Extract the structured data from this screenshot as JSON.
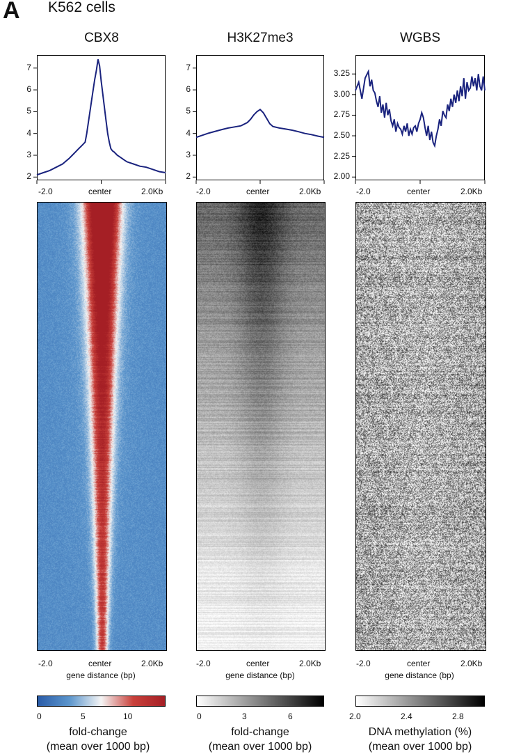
{
  "figure": {
    "panel_letter": "A",
    "title": "K562 cells",
    "colors": {
      "cbx8_line": "#1a237e",
      "h3k_line": "#1a237e",
      "wgbs_line": "#1a237e"
    }
  },
  "chart_data": [
    {
      "type": "line",
      "name": "CBX8 profile",
      "title": "CBX8",
      "x_tick_labels": [
        "-2.0",
        "center",
        "2.0Kb"
      ],
      "y_ticks": [
        2,
        3,
        4,
        5,
        6,
        7
      ],
      "ylim": [
        1.85,
        7.6
      ],
      "x": [
        -2000,
        -1800,
        -1600,
        -1400,
        -1200,
        -1000,
        -900,
        -800,
        -700,
        -600,
        -500,
        -450,
        -400,
        -350,
        -300,
        -250,
        -200,
        -150,
        -100,
        -50,
        0,
        50,
        100,
        150,
        200,
        250,
        300,
        350,
        400,
        500,
        600,
        700,
        800,
        1000,
        1200,
        1400,
        1600,
        1800,
        2000
      ],
      "y": [
        2.1,
        2.2,
        2.3,
        2.45,
        2.6,
        2.85,
        3.0,
        3.15,
        3.3,
        3.45,
        3.6,
        4.0,
        4.5,
        5.0,
        5.5,
        6.0,
        6.5,
        6.9,
        7.4,
        7.1,
        6.4,
        5.8,
        5.2,
        4.6,
        4.0,
        3.6,
        3.3,
        3.2,
        3.15,
        3.0,
        2.9,
        2.8,
        2.7,
        2.6,
        2.5,
        2.45,
        2.35,
        2.25,
        2.2
      ]
    },
    {
      "type": "line",
      "name": "H3K27me3 profile",
      "title": "H3K27me3",
      "x_tick_labels": [
        "-2.0",
        "center",
        "2.0Kb"
      ],
      "y_ticks": [
        2,
        3,
        4,
        5,
        6,
        7
      ],
      "ylim": [
        1.85,
        7.6
      ],
      "x": [
        -2000,
        -1800,
        -1600,
        -1400,
        -1200,
        -1000,
        -800,
        -600,
        -400,
        -300,
        -200,
        -100,
        0,
        100,
        200,
        300,
        400,
        600,
        800,
        1000,
        1200,
        1400,
        1600,
        1800,
        2000
      ],
      "y": [
        3.82,
        3.92,
        4.02,
        4.1,
        4.18,
        4.25,
        4.3,
        4.35,
        4.5,
        4.65,
        4.85,
        5.0,
        5.1,
        4.95,
        4.7,
        4.45,
        4.32,
        4.25,
        4.2,
        4.15,
        4.08,
        4.0,
        3.95,
        3.88,
        3.82
      ]
    },
    {
      "type": "line",
      "name": "WGBS profile",
      "title": "WGBS",
      "x_tick_labels": [
        "-2.0",
        "center",
        "2.0Kb"
      ],
      "y_ticks": [
        2.0,
        2.25,
        2.5,
        2.75,
        3.0,
        3.25
      ],
      "y_tick_labels": [
        "2.00",
        "2.25",
        "2.50",
        "2.75",
        "3.00",
        "3.25"
      ],
      "ylim": [
        1.96,
        3.48
      ],
      "x": [
        -2000,
        -1900,
        -1800,
        -1700,
        -1600,
        -1550,
        -1500,
        -1450,
        -1400,
        -1350,
        -1300,
        -1250,
        -1200,
        -1150,
        -1100,
        -1050,
        -1000,
        -950,
        -900,
        -850,
        -800,
        -750,
        -700,
        -650,
        -600,
        -550,
        -500,
        -450,
        -400,
        -350,
        -300,
        -250,
        -200,
        -150,
        -100,
        -50,
        0,
        50,
        100,
        150,
        200,
        250,
        300,
        350,
        400,
        450,
        500,
        550,
        600,
        650,
        700,
        750,
        800,
        850,
        900,
        950,
        1000,
        1050,
        1100,
        1150,
        1200,
        1250,
        1300,
        1350,
        1400,
        1450,
        1500,
        1550,
        1600,
        1650,
        1700,
        1750,
        1800,
        1850,
        1900,
        1950,
        2000
      ],
      "y": [
        3.05,
        3.15,
        2.95,
        3.2,
        3.28,
        3.1,
        3.18,
        3.05,
        3.02,
        2.92,
        2.85,
        2.98,
        2.78,
        2.88,
        2.72,
        2.9,
        2.75,
        2.82,
        2.68,
        2.62,
        2.7,
        2.55,
        2.65,
        2.6,
        2.58,
        2.52,
        2.62,
        2.55,
        2.65,
        2.5,
        2.58,
        2.52,
        2.6,
        2.62,
        2.55,
        2.65,
        2.7,
        2.78,
        2.72,
        2.6,
        2.5,
        2.62,
        2.45,
        2.55,
        2.42,
        2.38,
        2.5,
        2.58,
        2.7,
        2.62,
        2.8,
        2.75,
        2.72,
        2.88,
        2.8,
        2.95,
        2.85,
        3.0,
        2.9,
        3.05,
        2.92,
        3.1,
        2.98,
        3.2,
        2.95,
        3.15,
        3.05,
        3.08,
        3.22,
        3.1,
        3.2,
        3.05,
        3.25,
        3.1,
        3.05,
        3.22,
        3.05
      ]
    },
    {
      "type": "heatmap",
      "name": "CBX8 heatmap",
      "x_tick_labels": [
        "-2.0",
        "center",
        "2.0Kb"
      ],
      "xlabel": "gene distance (bp)",
      "colormap": [
        "#2a5ca8",
        "#5b95cc",
        "#f5f5f5",
        "#c9413b",
        "#a51f25"
      ],
      "colorbar_ticks": [
        0,
        5,
        10
      ],
      "colorbar_range": [
        0,
        14
      ],
      "colorbar_label_line1": "fold-change",
      "colorbar_label_line2": "(mean over 1000 bp)"
    },
    {
      "type": "heatmap",
      "name": "H3K27me3 heatmap",
      "x_tick_labels": [
        "-2.0",
        "center",
        "2.0Kb"
      ],
      "xlabel": "gene distance (bp)",
      "colormap": [
        "#ffffff",
        "#000000"
      ],
      "colorbar_ticks": [
        0,
        3,
        6
      ],
      "colorbar_range": [
        0,
        8
      ],
      "colorbar_label_line1": "fold-change",
      "colorbar_label_line2": "(mean over 1000 bp)"
    },
    {
      "type": "heatmap",
      "name": "WGBS heatmap",
      "x_tick_labels": [
        "-2.0",
        "center",
        "2.0Kb"
      ],
      "xlabel": "gene distance (bp)",
      "colormap": [
        "#ffffff",
        "#000000"
      ],
      "colorbar_ticks": [
        2.0,
        2.4,
        2.8
      ],
      "colorbar_tick_labels": [
        "2.0",
        "2.4",
        "2.8"
      ],
      "colorbar_range": [
        2.0,
        3.0
      ],
      "colorbar_label_line1": "DNA methylation (%)",
      "colorbar_label_line2": "(mean over 1000 bp)"
    }
  ]
}
